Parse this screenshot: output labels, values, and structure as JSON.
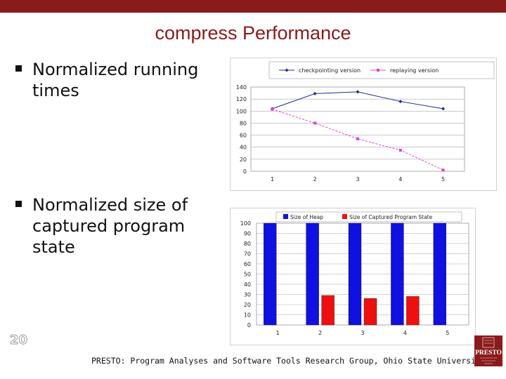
{
  "slide": {
    "title": "compress Performance",
    "page_number": "20",
    "footer": "PRESTO: Program Analyses and Software Tools Research Group, Ohio State University"
  },
  "bullets": [
    {
      "text": "Normalized running times"
    },
    {
      "text": "Normalized size of captured program state"
    }
  ],
  "logo": {
    "text": "PRESTO"
  },
  "colors": {
    "accent": "#8b1a1a",
    "checkpointing": "#1f2a8a",
    "replaying": "#e040d0",
    "heap": "#1010e0",
    "captured": "#ee1010"
  },
  "chart_data": [
    {
      "type": "line",
      "x": [
        1,
        2,
        3,
        4,
        5
      ],
      "series": [
        {
          "name": "checkpointing version",
          "values": [
            104,
            129,
            132,
            116,
            104
          ]
        },
        {
          "name": "replaying version",
          "values": [
            103,
            80,
            54,
            35,
            2
          ]
        }
      ],
      "ylim": [
        0,
        140
      ],
      "yticks": [
        0,
        20,
        40,
        60,
        80,
        100,
        120,
        140
      ],
      "grid": true,
      "legend": "top"
    },
    {
      "type": "bar",
      "categories": [
        "1",
        "2",
        "3",
        "4",
        "5"
      ],
      "series": [
        {
          "name": "Size of Heap",
          "values": [
            100,
            100,
            100,
            100,
            100
          ]
        },
        {
          "name": "Size of Captured Program State",
          "values": [
            0,
            29,
            26,
            28,
            0
          ]
        }
      ],
      "ylim": [
        0,
        100
      ],
      "yticks": [
        0,
        10,
        20,
        30,
        40,
        50,
        60,
        70,
        80,
        90,
        100
      ],
      "grid": true,
      "legend": "top"
    }
  ]
}
